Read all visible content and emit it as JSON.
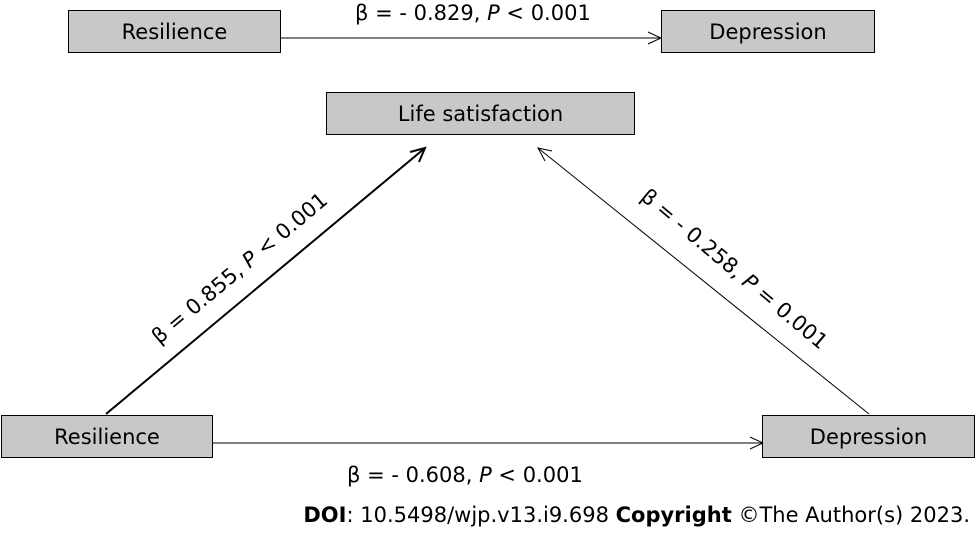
{
  "top": {
    "left_box": "Resilience",
    "right_box": "Depression",
    "path_label": {
      "beta": "β = - 0.829, ",
      "p": "P",
      "rest": "  < 0.001"
    }
  },
  "center_box": "Life satisfaction",
  "bottom": {
    "left_box": "Resilience",
    "right_box": "Depression",
    "path_label": {
      "beta": "β = - 0.608, ",
      "p": "P",
      "rest": " < 0.001"
    }
  },
  "left_path_label": {
    "beta": "β = 0.855, ",
    "p": "P",
    "rest": " < 0.001"
  },
  "right_path_label": {
    "beta": "β = - 0.258, ",
    "p": "P",
    "rest": " = 0.001"
  },
  "footer": {
    "doi_label": "DOI",
    "doi_value": ": 10.5498/wjp.v13.i9.698 ",
    "copyright_label": "Copyright",
    "copyright_value": " ©The Author(s) 2023."
  },
  "colors": {
    "box_fill": "#c8c8c8",
    "stroke": "#000000"
  }
}
